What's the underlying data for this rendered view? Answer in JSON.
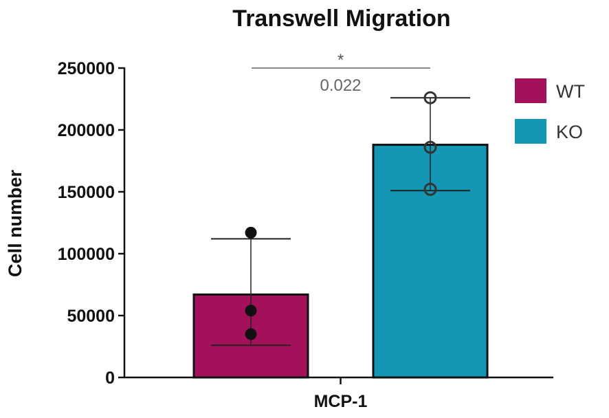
{
  "chart_data": {
    "type": "bar",
    "title": "Transwell Migration",
    "xlabel": "",
    "ylabel": "Cell number",
    "categories": [
      "MCP-1"
    ],
    "ylim": [
      0,
      250000
    ],
    "yticks": [
      "0",
      "50000",
      "100000",
      "150000",
      "200000",
      "250000"
    ],
    "yticks_values": [
      0,
      50000,
      100000,
      150000,
      200000,
      250000
    ],
    "series": [
      {
        "name": "WT",
        "color": "#A3115A",
        "value": 67000,
        "error_low": 26000,
        "error_high": 112000,
        "points": [
          117000,
          54000,
          35000
        ],
        "marker": "filled-circle"
      },
      {
        "name": "KO",
        "color": "#1297B5",
        "value": 188000,
        "error_low": 151000,
        "error_high": 226000,
        "points": [
          226000,
          186000,
          152000
        ],
        "marker": "open-circle"
      }
    ],
    "significance": {
      "star": "*",
      "p_value": "0.022"
    },
    "legend_position": "right",
    "grid": false
  }
}
